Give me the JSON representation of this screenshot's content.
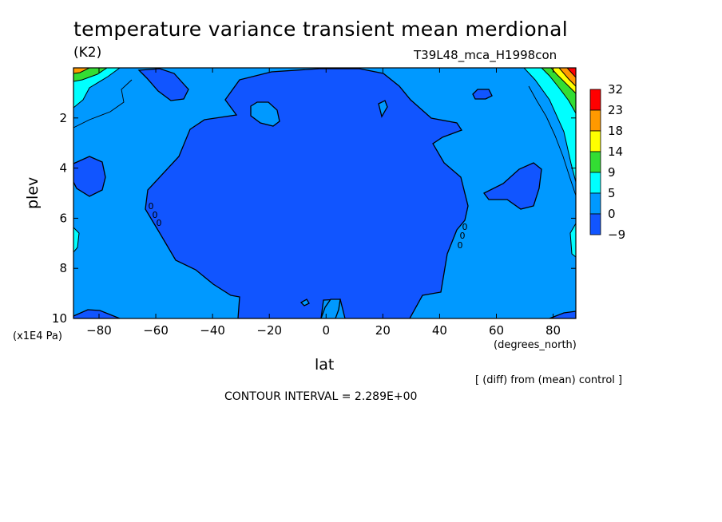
{
  "chart_data": {
    "type": "heatmap",
    "title": "temperature variance transient mean merdional",
    "units": "(K2)",
    "run_name": "T39L48_mca_H1998con",
    "xlabel": "lat",
    "xlabel_units": "(degrees_north)",
    "ylabel": "plev",
    "ylabel_units": "(x1E4 Pa)",
    "xlim": [
      -89,
      88
    ],
    "ylim": [
      10,
      0
    ],
    "x_ticks": [
      -80,
      -60,
      -40,
      -20,
      0,
      20,
      40,
      60,
      80
    ],
    "y_ticks": [
      2,
      4,
      6,
      8,
      10
    ],
    "colorbar": {
      "levels": [
        "32",
        "23",
        "18",
        "14",
        "9",
        "5",
        "0",
        "-9"
      ],
      "colors": [
        "#ff0000",
        "#ff9900",
        "#ffff00",
        "#33dd33",
        "#00ffff",
        "#0099ff",
        "#1155ff"
      ]
    },
    "contour_labels": [
      "0",
      "0",
      "0",
      "0",
      "0",
      "0",
      "0"
    ],
    "regions": [
      {
        "level": "below 0 (dark blue)",
        "description": "large central core from about -60 to 55 lat, plev 0.5 to 10"
      },
      {
        "level": "below 0 (dark blue)",
        "description": "small patches near -80 lat (plev 4-5), 70 lat (plev 4-5), -65 lat top, 55 lat top"
      },
      {
        "level": "0 to 5 (blue)",
        "description": "background over most of domain"
      },
      {
        "level": "above 5 (cyan/green/orange/red)",
        "description": "narrow high-latitude bands near the top at both poles"
      }
    ],
    "annotation": "[ (diff) from (mean) control ]",
    "contour_interval_text": "CONTOUR INTERVAL = 2.289E+00"
  }
}
